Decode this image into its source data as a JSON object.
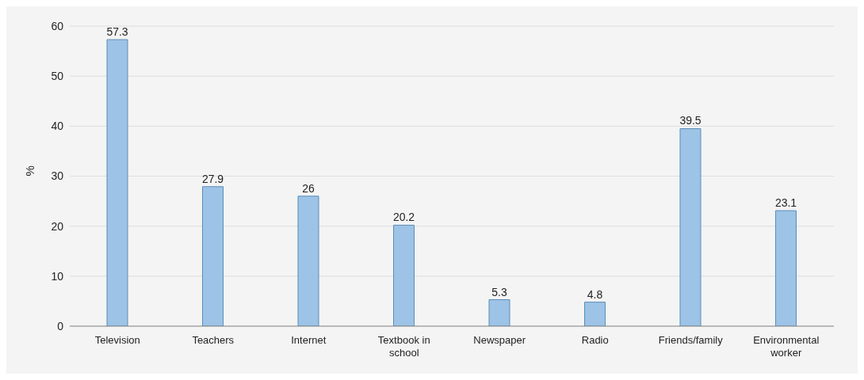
{
  "chart_data": {
    "type": "bar",
    "ylabel": "%",
    "categories": [
      "Television",
      "Teachers",
      "Internet",
      "Textbook in school",
      "Newspaper",
      "Radio",
      "Friends/family",
      "Environmental worker"
    ],
    "values": [
      57.3,
      27.9,
      26,
      20.2,
      5.3,
      4.8,
      39.5,
      23.1
    ],
    "color": "#9dc3e6",
    "ylim": [
      0,
      60
    ],
    "yticks": [
      0,
      10,
      20,
      30,
      40,
      50,
      60
    ],
    "grid": "y",
    "data_labels": true
  }
}
